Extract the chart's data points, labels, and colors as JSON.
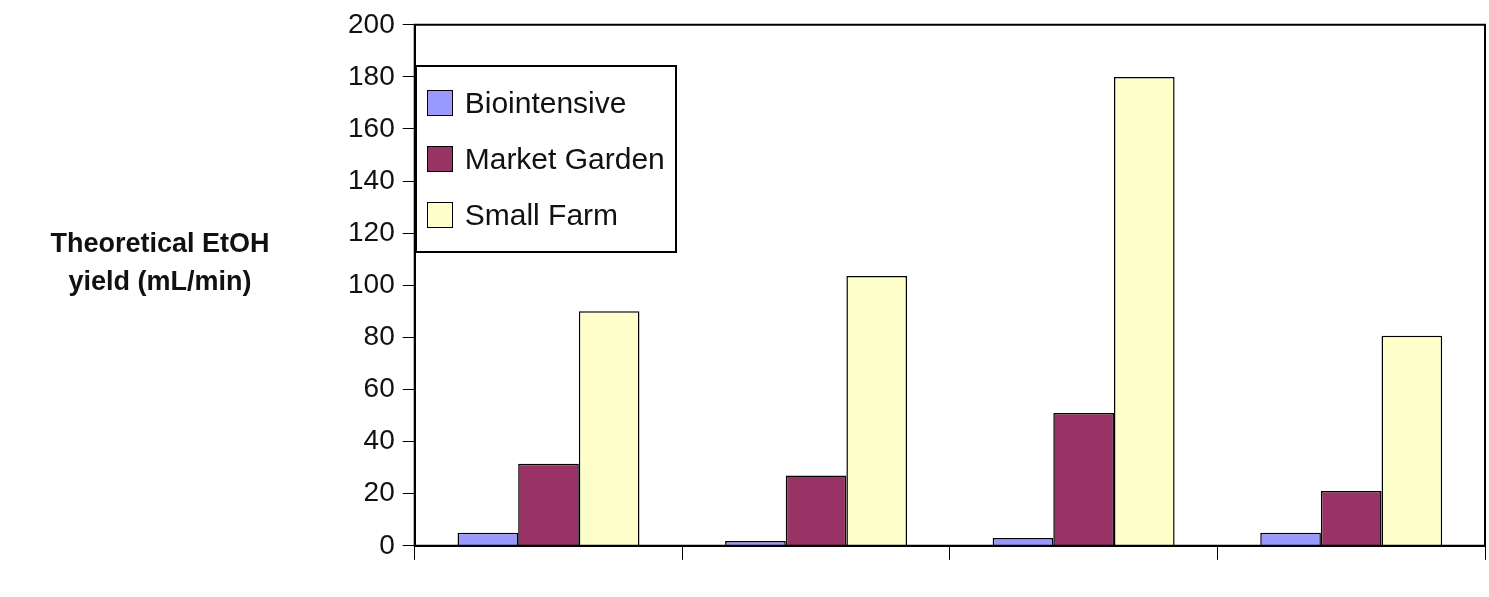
{
  "chart_data": {
    "type": "bar",
    "ylabel": "Theoretical EtOH yield (mL/min)",
    "categories": [
      null,
      null,
      null,
      null
    ],
    "series": [
      {
        "name": "Biointensive",
        "color": "#9999ff",
        "values": [
          5,
          1.8,
          3,
          5
        ]
      },
      {
        "name": "Market Garden",
        "color": "#993366",
        "values": [
          31.5,
          27,
          51,
          21
        ]
      },
      {
        "name": "Small Farm",
        "color": "#ffffcc",
        "values": [
          90,
          103.6,
          180,
          80.6
        ]
      }
    ],
    "ylim": [
      0,
      200
    ],
    "yticks": [
      0,
      20,
      40,
      60,
      80,
      100,
      120,
      140,
      160,
      180,
      200
    ],
    "grid": false,
    "legend": "top left"
  }
}
